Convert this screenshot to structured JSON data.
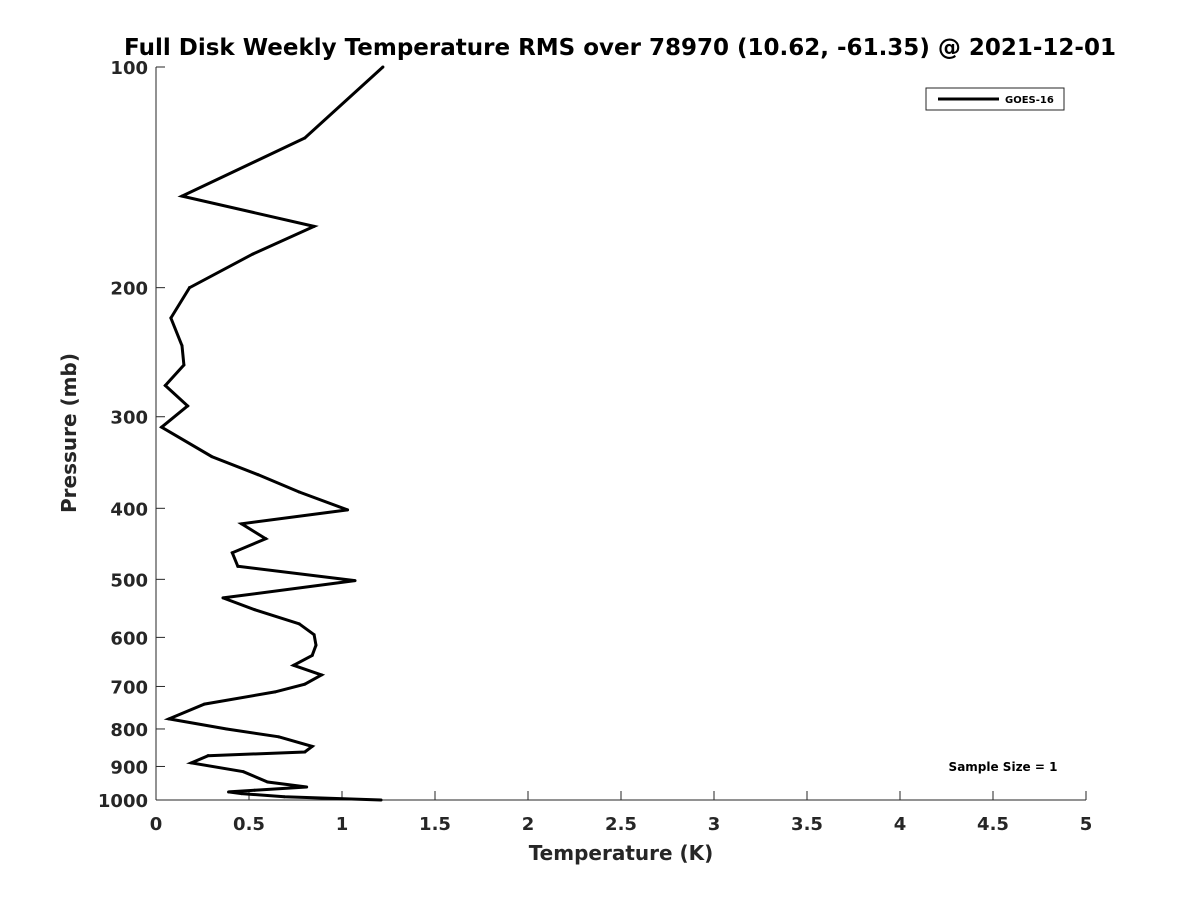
{
  "chart_data": {
    "type": "line",
    "title": "Full Disk Weekly Temperature RMS over 78970 (10.62, -61.35) @ 2021-12-01",
    "xlabel": "Temperature (K)",
    "ylabel": "Pressure (mb)",
    "xlim": [
      0,
      5
    ],
    "ylim": [
      100,
      1000
    ],
    "y_scale": "log",
    "y_reversed": true,
    "x_ticks": [
      "0",
      "0.5",
      "1",
      "1.5",
      "2",
      "2.5",
      "3",
      "3.5",
      "4",
      "4.5",
      "5"
    ],
    "y_ticks": [
      "100",
      "200",
      "300",
      "400",
      "500",
      "600",
      "700",
      "800",
      "900",
      "1000"
    ],
    "grid": false,
    "legend_position": "top-right",
    "line_color": "#000000",
    "series": [
      {
        "name": "GOES-16",
        "x": [
          1.22,
          0.8,
          0.14,
          0.85,
          0.52,
          0.18,
          0.08,
          0.14,
          0.15,
          0.05,
          0.17,
          0.03,
          0.3,
          0.55,
          0.77,
          1.03,
          0.46,
          0.59,
          0.41,
          0.44,
          1.07,
          0.36,
          0.53,
          0.77,
          0.85,
          0.86,
          0.84,
          0.74,
          0.89,
          0.8,
          0.64,
          0.26,
          0.07,
          0.38,
          0.66,
          0.84,
          0.8,
          0.28,
          0.19,
          0.47,
          0.6,
          0.81,
          0.53,
          0.39,
          0.46,
          0.69,
          1.21
        ],
        "y": [
          100,
          125,
          150,
          165,
          180,
          200,
          220,
          240,
          255,
          272,
          290,
          310,
          340,
          360,
          380,
          402,
          420,
          440,
          460,
          480,
          502,
          530,
          550,
          575,
          595,
          615,
          635,
          655,
          675,
          695,
          712,
          740,
          775,
          800,
          820,
          845,
          860,
          870,
          890,
          915,
          945,
          960,
          970,
          975,
          980,
          990,
          1000
        ]
      }
    ],
    "annotation": "Sample Size = 1"
  }
}
